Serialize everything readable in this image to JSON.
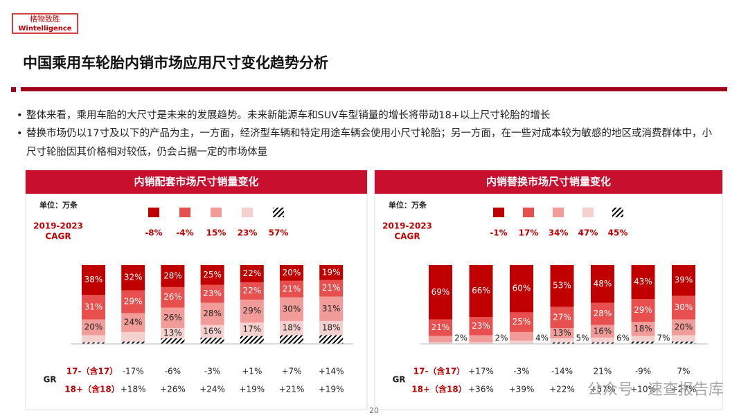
{
  "header": {
    "logo_cn": "格物致胜",
    "logo_en": "Wintelligence",
    "title": "中国乘用车轮胎内销市场应用尺寸变化趋势分析"
  },
  "bullets": [
    "整体来看，乘用车胎的大尺寸是未来的发展趋势。未来新能源车和SUV车型销量的增长将带动18+以上尺寸轮胎的增长",
    "替换市场仍以17寸及以下的产品为主，一方面，经济型车辆和特定用途车辆会使用小尺寸轮胎；另一方面，在一些对成本较为敏感的地区或消费群体中，小尺寸轮胎因其价格相对较低，仍会占据一定的市场体量"
  ],
  "chart_data": [
    {
      "type": "bar",
      "stacked": true,
      "title": "内销配套市场尺寸销量变化",
      "unit": "单位：万条",
      "cagr_title": [
        "2019-2023",
        "CAGR"
      ],
      "ylim": [
        0,
        100
      ],
      "series": [
        {
          "color": "#c00000",
          "cagr": "-8%",
          "values": [
            38,
            32,
            28,
            25,
            22,
            20,
            19
          ],
          "value_labels": [
            "38%",
            "32%",
            "28%",
            "25%",
            "22%",
            "20%",
            "19%"
          ]
        },
        {
          "color": "#e8504f",
          "cagr": "-4%",
          "values": [
            31,
            29,
            26,
            23,
            22,
            21,
            21
          ],
          "value_labels": [
            "31%",
            "29%",
            "26%",
            "23%",
            "22%",
            "21%",
            "21%"
          ]
        },
        {
          "color": "#f19c99",
          "cagr": "15%",
          "values": [
            20,
            24,
            26,
            28,
            29,
            30,
            31
          ],
          "value_labels": [
            "20%",
            "24%",
            "26%",
            "28%",
            "29%",
            "30%",
            "31%"
          ]
        },
        {
          "color": "#f4d0cf",
          "cagr": "23%",
          "values": [
            9,
            12,
            13,
            16,
            17,
            18,
            18
          ],
          "value_labels": [
            null,
            null,
            "13%",
            "16%",
            "17%",
            "18%",
            "18%"
          ]
        },
        {
          "color": "#000000",
          "pattern": "hatch",
          "cagr": "57%",
          "values": [
            2,
            3,
            7,
            8,
            10,
            11,
            11
          ]
        }
      ],
      "gr_label": "GR",
      "gr_rows": [
        {
          "name": "17-（含17）",
          "labels": [
            "-17%",
            "-6%",
            "-3%",
            "+1%",
            "+7%",
            "+14%"
          ]
        },
        {
          "name": "18+（含18）",
          "labels": [
            "+18%",
            "+26%",
            "+24%",
            "+19%",
            "+21%",
            "+19%"
          ]
        }
      ]
    },
    {
      "type": "bar",
      "stacked": true,
      "title": "内销替换市场尺寸销量变化",
      "unit": "单位：万条",
      "cagr_title": [
        "2019-2023",
        "CAGR"
      ],
      "ylim": [
        0,
        100
      ],
      "series": [
        {
          "color": "#c00000",
          "cagr": "-1%",
          "values": [
            69,
            66,
            60,
            53,
            48,
            43,
            39
          ],
          "value_labels": [
            "69%",
            "66%",
            "60%",
            "53%",
            "48%",
            "43%",
            "39%"
          ]
        },
        {
          "color": "#e8504f",
          "cagr": "17%",
          "values": [
            21,
            23,
            25,
            27,
            28,
            29,
            30
          ],
          "value_labels": [
            "21%",
            "23%",
            "25%",
            "27%",
            "28%",
            "29%",
            "30%"
          ]
        },
        {
          "color": "#f19c99",
          "cagr": "34%",
          "values": [
            8,
            9,
            11,
            13,
            16,
            18,
            20
          ],
          "value_labels": [
            null,
            null,
            null,
            "13%",
            "16%",
            "18%",
            "20%"
          ]
        },
        {
          "color": "#f4d0cf",
          "cagr": "47%",
          "values": [
            2,
            2,
            4,
            5,
            6,
            7,
            8
          ],
          "value_labels": [
            "2%",
            "2%",
            "4%",
            "5%",
            "6%",
            "7%",
            null
          ]
        },
        {
          "color": "#000000",
          "pattern": "hatch",
          "cagr": "45%",
          "values": [
            0,
            0,
            0,
            2,
            2,
            3,
            3
          ]
        }
      ],
      "gr_label": "GR",
      "gr_rows": [
        {
          "name": "17-（含17）",
          "labels": [
            "+17%",
            "-3%",
            "-14%",
            "21%",
            "-9%",
            "7%"
          ]
        },
        {
          "name": "18+（含18）",
          "labels": [
            "+36%",
            "+39%",
            "+22%",
            "+57%",
            "+10%",
            "+27%"
          ]
        }
      ]
    }
  ],
  "page_number": "20",
  "watermark": "公众号 · 速查报告库"
}
